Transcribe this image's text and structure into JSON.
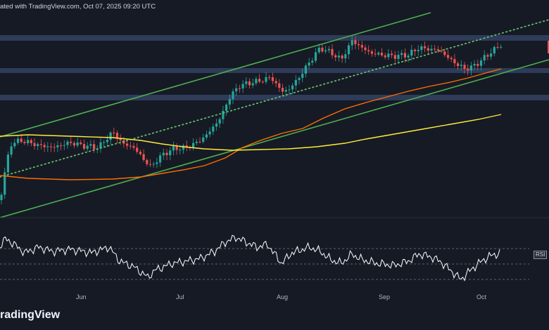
{
  "header": {
    "text": "ated with TradingView.com, Oct 07, 2025 09:20 UTC"
  },
  "brand": {
    "text": "radingView"
  },
  "rsi": {
    "badge": "RSI",
    "level_upper": 70,
    "level_lower": 30
  },
  "colors": {
    "background": "#161a25",
    "up_candle": "#26a69a",
    "down_candle": "#ef5350",
    "channel": "#4caf50",
    "dotted_trend": "#66bb6a",
    "ma_fast": "#ff6d00",
    "ma_slow": "#ffeb3b",
    "zones": "#2f3d5c",
    "rsi_line": "#ffffff"
  },
  "chart_data": {
    "type": "candlestick",
    "x_ticks": [
      "Jun",
      "Jul",
      "Aug",
      "Sep",
      "Oct"
    ],
    "resistance_zones": 3,
    "indicators": [
      "ascending channel",
      "dotted trendline",
      "moving average (orange)",
      "moving average (yellow)",
      "RSI"
    ]
  }
}
